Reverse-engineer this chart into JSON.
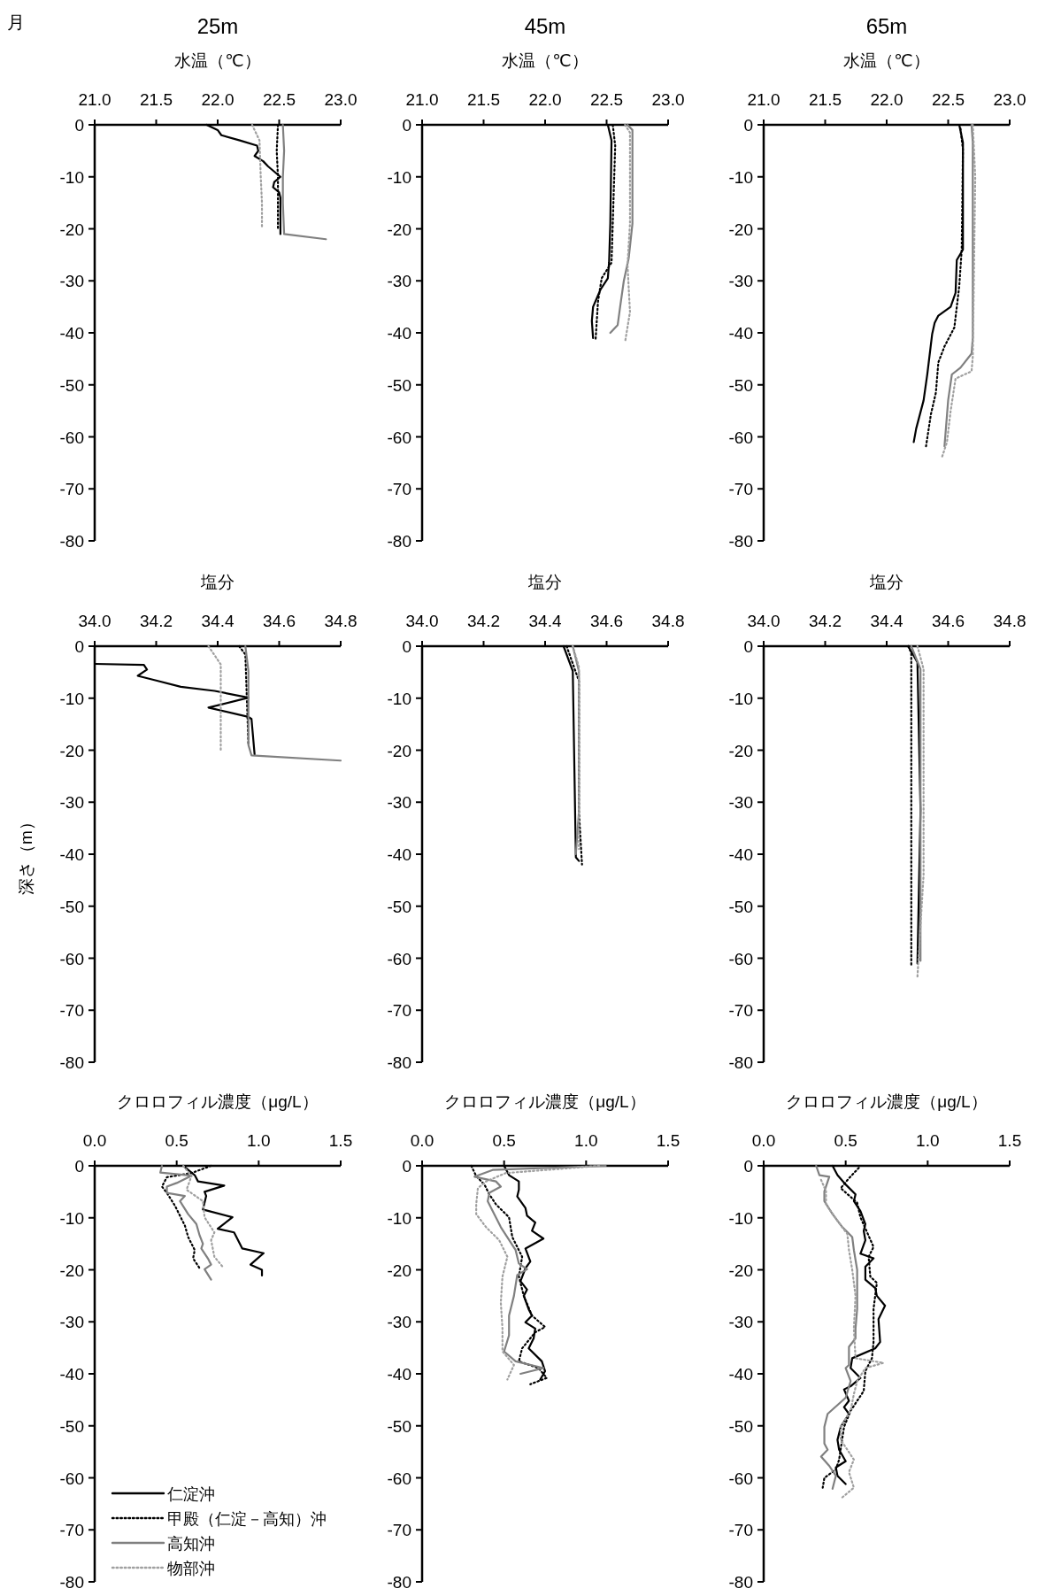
{
  "chart_data": [
    {
      "type": "line",
      "title": "25m",
      "xlabel": "水温（℃）",
      "annotations": [
        "月"
      ],
      "xlim": [
        21,
        23
      ],
      "xticks": [
        {
          "value": 21,
          "label": "21.0"
        },
        {
          "value": 21.5,
          "label": "21.5"
        },
        {
          "value": 22,
          "label": "22.0"
        },
        {
          "value": 22.5,
          "label": "22.5"
        },
        {
          "value": 23,
          "label": "23.0"
        }
      ],
      "ylim": [
        -80,
        0
      ],
      "yticks": [
        0,
        -10,
        -20,
        -30,
        -40,
        -50,
        -60,
        -70,
        -80
      ],
      "series": [
        {
          "color": "#000000",
          "line_style": "solid",
          "x": [
            21.91,
            22.0,
            22.03,
            22.18,
            22.32,
            22.33,
            22.3,
            22.37,
            22.41,
            22.51,
            22.46,
            22.45,
            22.5,
            22.51,
            22.51
          ],
          "values": [
            0,
            -1,
            -2,
            -3,
            -4,
            -5,
            -6,
            -7,
            -8,
            -10,
            -11,
            -12,
            -13,
            -14,
            -21
          ]
        },
        {
          "color": "#000000",
          "line_style": "dotted",
          "x": [
            22.49,
            22.48,
            22.49,
            22.49,
            22.49
          ],
          "values": [
            0,
            -5,
            -10,
            -15,
            -20
          ]
        },
        {
          "color": "#808080",
          "line_style": "solid",
          "x": [
            22.53,
            22.54,
            22.53,
            22.53,
            22.54,
            22.88
          ],
          "values": [
            0,
            -5,
            -10,
            -15,
            -21,
            -22
          ]
        },
        {
          "color": "#a0a0a0",
          "line_style": "dotted",
          "x": [
            22.28,
            22.34,
            22.35,
            22.36,
            22.36
          ],
          "values": [
            0,
            -3,
            -10,
            -15,
            -20
          ]
        }
      ]
    },
    {
      "type": "line",
      "title": "45m",
      "xlabel": "水温（℃）",
      "xlim": [
        21,
        23
      ],
      "xticks": [
        {
          "value": 21,
          "label": "21.0"
        },
        {
          "value": 21.5,
          "label": "21.5"
        },
        {
          "value": 22,
          "label": "22.0"
        },
        {
          "value": 22.5,
          "label": "22.5"
        },
        {
          "value": 23,
          "label": "23.0"
        }
      ],
      "ylim": [
        -80,
        0
      ],
      "yticks": [
        0,
        -10,
        -20,
        -30,
        -40,
        -50,
        -60,
        -70,
        -80
      ],
      "series": [
        {
          "color": "#000000",
          "line_style": "solid",
          "x": [
            22.51,
            22.54,
            22.53,
            22.52,
            22.51,
            22.45,
            22.39,
            22.38,
            22.39
          ],
          "values": [
            0,
            -3,
            -19,
            -26.5,
            -29.5,
            -31.7,
            -35,
            -37.7,
            -41
          ]
        },
        {
          "color": "#000000",
          "line_style": "dotted",
          "x": [
            22.55,
            22.57,
            22.55,
            22.54,
            22.46,
            22.43,
            22.41
          ],
          "values": [
            0,
            -4,
            -19,
            -26.5,
            -29.5,
            -34,
            -41.5
          ]
        },
        {
          "color": "#808080",
          "line_style": "solid",
          "x": [
            22.67,
            22.71,
            22.71,
            22.68,
            22.64,
            22.61,
            22.59,
            22.53
          ],
          "values": [
            0,
            -1,
            -19,
            -25.6,
            -30,
            -35,
            -38.5,
            -40
          ]
        },
        {
          "color": "#a0a0a0",
          "line_style": "dotted",
          "x": [
            22.65,
            22.69,
            22.69,
            22.67,
            22.69,
            22.65
          ],
          "values": [
            0,
            -1.5,
            -19,
            -27,
            -36,
            -41.8
          ]
        }
      ]
    },
    {
      "type": "line",
      "title": "65m",
      "xlabel": "水温（℃）",
      "xlim": [
        21,
        23
      ],
      "xticks": [
        {
          "value": 21,
          "label": "21.0"
        },
        {
          "value": 21.5,
          "label": "21.5"
        },
        {
          "value": 22,
          "label": "22.0"
        },
        {
          "value": 22.5,
          "label": "22.5"
        },
        {
          "value": 23,
          "label": "23.0"
        }
      ],
      "ylim": [
        -80,
        0
      ],
      "yticks": [
        0,
        -10,
        -20,
        -30,
        -40,
        -50,
        -60,
        -70,
        -80
      ],
      "series": [
        {
          "color": "#000000",
          "line_style": "solid",
          "x": [
            22.59,
            22.62,
            22.62,
            22.57,
            22.56,
            22.52,
            22.42,
            22.39,
            22.37,
            22.33,
            22.3,
            22.24,
            22.22
          ],
          "values": [
            0,
            -3.4,
            -24,
            -26,
            -32.3,
            -35,
            -36.7,
            -38.1,
            -40.2,
            -48,
            -53,
            -58.4,
            -61
          ]
        },
        {
          "color": "#000000",
          "line_style": "dotted",
          "x": [
            22.6,
            22.62,
            22.61,
            22.59,
            22.55,
            22.47,
            22.42,
            22.4,
            22.36,
            22.32
          ],
          "values": [
            -0.7,
            -4.8,
            -24,
            -31,
            -39,
            -42.6,
            -45.7,
            -51.5,
            -55.6,
            -61.8
          ]
        },
        {
          "color": "#808080",
          "line_style": "solid",
          "x": [
            22.69,
            22.7,
            22.7,
            22.69,
            22.6,
            22.53,
            22.5,
            22.47
          ],
          "values": [
            0,
            -3.4,
            -41,
            -44,
            -46.7,
            -48,
            -52.9,
            -61.8
          ]
        },
        {
          "color": "#a0a0a0",
          "line_style": "dotted",
          "x": [
            22.7,
            22.72,
            22.7,
            22.69,
            22.56,
            22.52,
            22.49,
            22.45
          ],
          "values": [
            0,
            -10,
            -44.6,
            -47.4,
            -48.8,
            -55,
            -61,
            -63.9
          ]
        }
      ]
    },
    {
      "type": "line",
      "xlabel": "塩分",
      "ylabel": "深さ（m）",
      "xlim": [
        34,
        34.8
      ],
      "xticks": [
        {
          "value": 34,
          "label": "34.0"
        },
        {
          "value": 34.2,
          "label": "34.2"
        },
        {
          "value": 34.4,
          "label": "34.4"
        },
        {
          "value": 34.6,
          "label": "34.6"
        },
        {
          "value": 34.8,
          "label": "34.8"
        }
      ],
      "ylim": [
        -80,
        0
      ],
      "yticks": [
        0,
        -10,
        -20,
        -30,
        -40,
        -50,
        -60,
        -70,
        -80
      ],
      "series": [
        {
          "color": "#000000",
          "line_style": "solid",
          "x": [
            34.0,
            34.16,
            34.17,
            34.14,
            34.2,
            34.28,
            34.39,
            34.5,
            34.37,
            34.5,
            34.51,
            34.52
          ],
          "values": [
            -3.4,
            -3.6,
            -4.5,
            -5.7,
            -6.6,
            -7.8,
            -8.6,
            -9.9,
            -11.8,
            -13.6,
            -14,
            -20.8
          ]
        },
        {
          "color": "#000000",
          "line_style": "dotted",
          "x": [
            34.47,
            34.49,
            34.5
          ],
          "values": [
            0,
            -1.6,
            -19
          ]
        },
        {
          "color": "#808080",
          "line_style": "solid",
          "x": [
            34.49,
            34.5,
            34.5,
            34.51,
            34.8
          ],
          "values": [
            0,
            -4.8,
            -19,
            -21,
            -22
          ]
        },
        {
          "color": "#a0a0a0",
          "line_style": "dotted",
          "x": [
            34.37,
            34.41,
            34.41
          ],
          "values": [
            0,
            -3.5,
            -20
          ]
        }
      ]
    },
    {
      "type": "line",
      "xlabel": "塩分",
      "xlim": [
        34,
        34.8
      ],
      "xticks": [
        {
          "value": 34,
          "label": "34.0"
        },
        {
          "value": 34.2,
          "label": "34.2"
        },
        {
          "value": 34.4,
          "label": "34.4"
        },
        {
          "value": 34.6,
          "label": "34.6"
        },
        {
          "value": 34.8,
          "label": "34.8"
        }
      ],
      "ylim": [
        -80,
        0
      ],
      "yticks": [
        0,
        -10,
        -20,
        -30,
        -40,
        -50,
        -60,
        -70,
        -80
      ],
      "series": [
        {
          "color": "#000000",
          "line_style": "solid",
          "x": [
            34.46,
            34.49,
            34.5,
            34.51
          ],
          "values": [
            0,
            -4.8,
            -40.6,
            -41.3
          ]
        },
        {
          "color": "#000000",
          "line_style": "dotted",
          "x": [
            34.47,
            34.51,
            34.51,
            34.52
          ],
          "values": [
            0,
            -6.7,
            -31.8,
            -42
          ]
        },
        {
          "color": "#808080",
          "line_style": "solid",
          "x": [
            34.49,
            34.51,
            34.51,
            34.5
          ],
          "values": [
            0,
            -4.8,
            -31.8,
            -40
          ]
        },
        {
          "color": "#a0a0a0",
          "line_style": "dotted",
          "x": [
            34.49,
            34.51,
            34.51
          ],
          "values": [
            0,
            -4,
            -39
          ]
        }
      ]
    },
    {
      "type": "line",
      "xlabel": "塩分",
      "xlim": [
        34,
        34.8
      ],
      "xticks": [
        {
          "value": 34,
          "label": "34.0"
        },
        {
          "value": 34.2,
          "label": "34.2"
        },
        {
          "value": 34.4,
          "label": "34.4"
        },
        {
          "value": 34.6,
          "label": "34.6"
        },
        {
          "value": 34.8,
          "label": "34.8"
        }
      ],
      "ylim": [
        -80,
        0
      ],
      "yticks": [
        0,
        -10,
        -20,
        -30,
        -40,
        -50,
        -60,
        -70,
        -80
      ],
      "series": [
        {
          "color": "#000000",
          "line_style": "solid",
          "x": [
            34.47,
            34.5,
            34.51,
            34.5
          ],
          "values": [
            0,
            -3.1,
            -31.5,
            -61
          ]
        },
        {
          "color": "#000000",
          "line_style": "dotted",
          "x": [
            34.47,
            34.48,
            34.48
          ],
          "values": [
            0,
            -1.3,
            -61.7
          ]
        },
        {
          "color": "#808080",
          "line_style": "solid",
          "x": [
            34.48,
            34.51,
            34.51
          ],
          "values": [
            0,
            -4.4,
            -60.5
          ]
        },
        {
          "color": "#a0a0a0",
          "line_style": "dotted",
          "x": [
            34.5,
            34.52,
            34.52,
            34.5
          ],
          "values": [
            0,
            -4.4,
            -44,
            -63.6
          ]
        }
      ]
    },
    {
      "type": "line",
      "xlabel": "クロロフィル濃度（μg/L）",
      "legend": "bottom",
      "xlim": [
        0,
        1.5
      ],
      "xticks": [
        {
          "value": 0,
          "label": "0.0"
        },
        {
          "value": 0.5,
          "label": "0.5"
        },
        {
          "value": 1,
          "label": "1.0"
        },
        {
          "value": 1.5,
          "label": "1.5"
        }
      ],
      "ylim": [
        -80,
        0
      ],
      "yticks": [
        0,
        -10,
        -20,
        -30,
        -40,
        -50,
        -60,
        -70,
        -80
      ],
      "series": [
        {
          "name": "仁淀沖",
          "color": "#000000",
          "line_style": "solid",
          "x": [
            0.54,
            0.61,
            0.63,
            0.79,
            0.67,
            0.68,
            0.66,
            0.84,
            0.75,
            0.85,
            0.9,
            1.03,
            0.95,
            1.02,
            1.02
          ],
          "values": [
            0,
            -1.8,
            -3,
            -3.8,
            -5,
            -5.8,
            -8.4,
            -9.9,
            -12.1,
            -12.8,
            -15.9,
            -16.8,
            -19,
            -20,
            -21.1
          ]
        },
        {
          "name": "甲殿（仁淀－高知）沖",
          "color": "#000000",
          "line_style": "dotted",
          "x": [
            0.71,
            0.59,
            0.44,
            0.41,
            0.44,
            0.49,
            0.55,
            0.57,
            0.61,
            0.6,
            0.64
          ],
          "values": [
            0,
            -1.4,
            -2.2,
            -4,
            -5.2,
            -7.7,
            -11.5,
            -13.7,
            -16.2,
            -17.8,
            -19.7
          ]
        },
        {
          "name": "高知沖",
          "color": "#808080",
          "line_style": "solid",
          "x": [
            0.41,
            0.4,
            0.59,
            0.5,
            0.44,
            0.44,
            0.55,
            0.52,
            0.57,
            0.62,
            0.64,
            0.66,
            0.65,
            0.69,
            0.71,
            0.67,
            0.71
          ],
          "values": [
            0,
            -1.3,
            -1.9,
            -3.3,
            -4,
            -5.2,
            -5.8,
            -6.8,
            -9.3,
            -11.2,
            -13.4,
            -15,
            -15.9,
            -17.8,
            -19,
            -19.9,
            -21.9
          ]
        },
        {
          "name": "物部沖",
          "color": "#a0a0a0",
          "line_style": "dotted",
          "x": [
            0.54,
            0.59,
            0.56,
            0.66,
            0.67,
            0.73,
            0.71,
            0.73,
            0.78
          ],
          "values": [
            0,
            -2,
            -4.6,
            -6.8,
            -9.9,
            -12.8,
            -14.3,
            -17.5,
            -19.4
          ]
        }
      ]
    },
    {
      "type": "line",
      "xlabel": "クロロフィル濃度（μg/L）",
      "xlim": [
        0,
        1.5
      ],
      "xticks": [
        {
          "value": 0,
          "label": "0.0"
        },
        {
          "value": 0.5,
          "label": "0.5"
        },
        {
          "value": 1,
          "label": "1.0"
        },
        {
          "value": 1.5,
          "label": "1.5"
        }
      ],
      "ylim": [
        -80,
        0
      ],
      "yticks": [
        0,
        -10,
        -20,
        -30,
        -40,
        -50,
        -60,
        -70,
        -80
      ],
      "series": [
        {
          "color": "#000000",
          "line_style": "solid",
          "x": [
            0.5,
            0.53,
            0.59,
            0.59,
            0.58,
            0.63,
            0.64,
            0.69,
            0.67,
            0.74,
            0.63,
            0.66,
            0.63,
            0.6,
            0.64,
            0.62,
            0.65,
            0.67,
            0.63,
            0.69,
            0.68,
            0.65,
            0.73,
            0.75,
            0.72
          ],
          "values": [
            0,
            -1.8,
            -3,
            -4.6,
            -5.9,
            -8.1,
            -9.6,
            -10.9,
            -12.5,
            -14,
            -15.9,
            -18.4,
            -19.7,
            -22.2,
            -23.8,
            -25,
            -27.6,
            -28.8,
            -30.1,
            -31.3,
            -33.2,
            -35.1,
            -37.6,
            -39.5,
            -41.1
          ]
        },
        {
          "color": "#000000",
          "line_style": "dotted",
          "x": [
            0.3,
            0.33,
            0.38,
            0.41,
            0.45,
            0.53,
            0.55,
            0.61,
            0.59,
            0.62,
            0.67,
            0.75,
            0.69,
            0.61,
            0.59,
            0.71,
            0.76,
            0.66
          ],
          "values": [
            0,
            -2,
            -3.6,
            -5.5,
            -7.4,
            -9.9,
            -13.7,
            -17.5,
            -21.3,
            -25,
            -28.8,
            -31,
            -32,
            -35.1,
            -37.6,
            -38.9,
            -40.8,
            -42
          ]
        },
        {
          "color": "#808080",
          "line_style": "solid",
          "x": [
            1.12,
            0.43,
            0.32,
            0.45,
            0.48,
            0.41,
            0.4,
            0.48,
            0.57,
            0.59,
            0.64,
            0.58,
            0.56,
            0.53,
            0.53,
            0.5,
            0.57,
            0.74,
            0.6
          ],
          "values": [
            0,
            -0.8,
            -2.1,
            -3,
            -4,
            -5.2,
            -6.8,
            -11.8,
            -16.2,
            -18.8,
            -19.9,
            -21,
            -25,
            -28.8,
            -32.6,
            -35.7,
            -37.6,
            -38.9,
            -40
          ]
        },
        {
          "color": "#a0a0a0",
          "line_style": "dotted",
          "x": [
            1.08,
            0.51,
            0.39,
            0.34,
            0.33,
            0.33,
            0.39,
            0.47,
            0.52,
            0.49,
            0.48,
            0.49,
            0.49,
            0.56,
            0.52
          ],
          "values": [
            0,
            -1.4,
            -3,
            -4.3,
            -7.4,
            -9.3,
            -11.8,
            -14.3,
            -17.5,
            -21.3,
            -26.3,
            -31.3,
            -35.7,
            -38.3,
            -41.1
          ]
        }
      ]
    },
    {
      "type": "line",
      "xlabel": "クロロフィル濃度（μg/L）",
      "xlim": [
        0,
        1.5
      ],
      "xticks": [
        {
          "value": 0,
          "label": "0.0"
        },
        {
          "value": 0.5,
          "label": "0.5"
        },
        {
          "value": 1,
          "label": "1.0"
        },
        {
          "value": 1.5,
          "label": "1.5"
        }
      ],
      "ylim": [
        -80,
        0
      ],
      "yticks": [
        0,
        -10,
        -20,
        -30,
        -40,
        -50,
        -60,
        -70,
        -80
      ],
      "series": [
        {
          "color": "#000000",
          "line_style": "solid",
          "x": [
            0.42,
            0.45,
            0.5,
            0.56,
            0.55,
            0.59,
            0.62,
            0.61,
            0.62,
            0.59,
            0.67,
            0.62,
            0.62,
            0.68,
            0.69,
            0.74,
            0.7,
            0.71,
            0.68,
            0.54,
            0.53,
            0.59,
            0.53,
            0.49,
            0.52,
            0.49,
            0.52,
            0.47,
            0.45,
            0.46,
            0.5,
            0.44,
            0.45,
            0.5
          ],
          "values": [
            0,
            -1.8,
            -3.6,
            -5.5,
            -6.8,
            -8.7,
            -11.2,
            -12.5,
            -14.3,
            -16.9,
            -17.8,
            -19.4,
            -21.9,
            -23.5,
            -25,
            -26.9,
            -29.5,
            -33.9,
            -35.1,
            -37,
            -38.9,
            -40.8,
            -42.4,
            -43,
            -45.2,
            -46.4,
            -47.7,
            -50.2,
            -52.7,
            -54.6,
            -56.8,
            -58,
            -59.6,
            -61.2
          ]
        },
        {
          "color": "#000000",
          "line_style": "dotted",
          "x": [
            0.58,
            0.52,
            0.47,
            0.57,
            0.59,
            0.67,
            0.64,
            0.65,
            0.69,
            0.67,
            0.67,
            0.66,
            0.62,
            0.61,
            0.53,
            0.49,
            0.46,
            0.44,
            0.37,
            0.36
          ],
          "values": [
            -0.4,
            -2.4,
            -4.3,
            -7.1,
            -9.9,
            -15.6,
            -17.5,
            -21.3,
            -22.5,
            -27.5,
            -33.9,
            -37,
            -39.5,
            -43.3,
            -47.1,
            -50.2,
            -56.5,
            -58.4,
            -60,
            -61.9
          ]
        },
        {
          "color": "#808080",
          "line_style": "solid",
          "x": [
            0.32,
            0.34,
            0.4,
            0.37,
            0.37,
            0.42,
            0.48,
            0.54,
            0.55,
            0.57,
            0.57,
            0.56,
            0.56,
            0.52,
            0.52,
            0.5,
            0.53,
            0.5,
            0.39,
            0.37,
            0.37,
            0.39,
            0.35,
            0.4,
            0.44,
            0.42
          ],
          "values": [
            0,
            -1.8,
            -2.1,
            -4.9,
            -6.8,
            -9.3,
            -11.8,
            -13.7,
            -16.2,
            -20,
            -27.5,
            -31.3,
            -33.2,
            -34.8,
            -38.3,
            -38.9,
            -41.4,
            -44.6,
            -47.7,
            -50.2,
            -53.4,
            -54.6,
            -55.9,
            -57.7,
            -59.6,
            -62.1
          ]
        },
        {
          "color": "#a0a0a0",
          "line_style": "dotted",
          "x": [
            0.35,
            0.38,
            0.38,
            0.45,
            0.51,
            0.52,
            0.54,
            0.56,
            0.55,
            0.56,
            0.73,
            0.62,
            0.57,
            0.55,
            0.53,
            0.47,
            0.47,
            0.55,
            0.52,
            0.55,
            0.47
          ],
          "values": [
            -2.7,
            -4.9,
            -7.4,
            -10.6,
            -13.1,
            -16.2,
            -20,
            -25,
            -31.3,
            -37,
            -37.9,
            -38.9,
            -41.4,
            -43.9,
            -47.1,
            -50.2,
            -52.7,
            -56.5,
            -58.9,
            -61.9,
            -64
          ]
        }
      ]
    }
  ]
}
